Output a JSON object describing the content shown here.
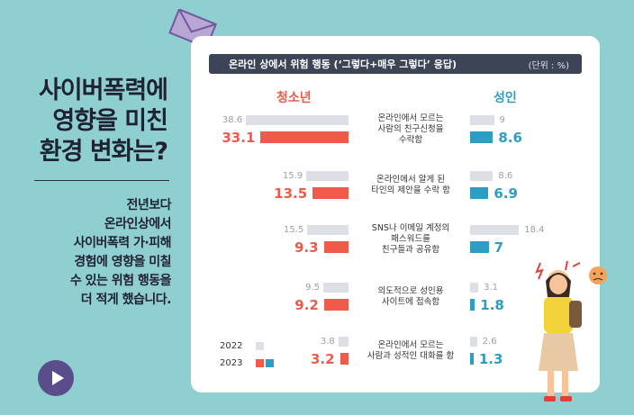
{
  "left": {
    "title_lines": [
      "사이버폭력에",
      "영향을 미친",
      "환경 변화는?"
    ],
    "desc_lines": [
      "전년보다",
      "온라인상에서",
      "사이버폭력 가·피해",
      "경험에 영향을 미칠",
      "수 있는 위험 행동을",
      "더 적게 했습니다."
    ]
  },
  "icons": {
    "envelope": "envelope-icon",
    "play": "play-icon"
  },
  "colors": {
    "youth_2023": "#f05a4a",
    "adult_2023": "#2f9cc4",
    "prior_2022": "#dcdfe6",
    "header_bg": "#3d4456"
  },
  "chart_data": {
    "type": "bar",
    "title": "온라인 상에서 위험 행동 (‘그렇다+매우 그렇다’ 응답)",
    "unit": "(단위 : %)",
    "group_labels": {
      "youth": "청소년",
      "adult": "성인"
    },
    "categories": [
      [
        "온라인에서 모르는",
        "사람의 친구신청을",
        "수락함"
      ],
      [
        "온라인에서 알게 된",
        "타인의 제안을 수락 함"
      ],
      [
        "SNS나 이메일 계정의",
        "패스워드를",
        "친구들과 공유함"
      ],
      [
        "의도적으로 성인용",
        "사이트에 접속함"
      ],
      [
        "온라인에서 모르는",
        "사람과 성적인 대화를 함"
      ]
    ],
    "series": [
      {
        "name": "2022",
        "group": "youth",
        "values": [
          38.6,
          15.9,
          15.5,
          9.5,
          3.8
        ]
      },
      {
        "name": "2023",
        "group": "youth",
        "values": [
          33.1,
          13.5,
          9.3,
          9.2,
          3.2
        ]
      },
      {
        "name": "2022",
        "group": "adult",
        "values": [
          9.0,
          8.6,
          18.4,
          3.1,
          2.6
        ]
      },
      {
        "name": "2023",
        "group": "adult",
        "values": [
          8.6,
          6.9,
          7.0,
          1.8,
          1.3
        ]
      }
    ],
    "legend": {
      "placement": "bottom-left",
      "years": [
        "2022",
        "2023"
      ]
    }
  }
}
